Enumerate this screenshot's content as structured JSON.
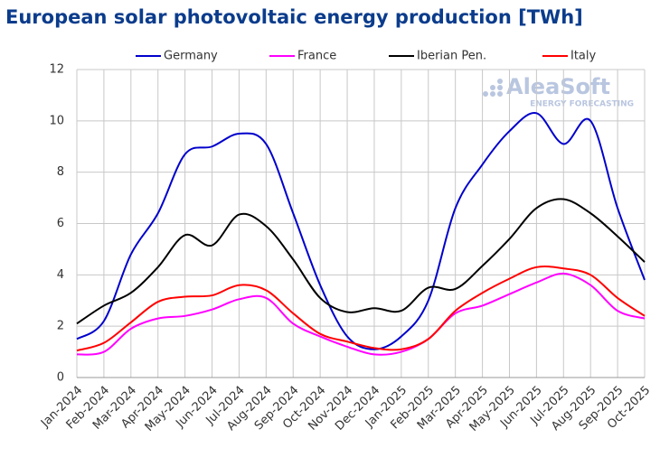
{
  "chart_data": {
    "type": "line",
    "title": "European solar photovoltaic energy production [TWh]",
    "logo": {
      "name": "AleaSoft",
      "tagline": "ENERGY FORECASTING"
    },
    "categories": [
      "Jan-2024",
      "Feb-2024",
      "Mar-2024",
      "Apr-2024",
      "May-2024",
      "Jun-2024",
      "Jul-2024",
      "Aug-2024",
      "Sep-2024",
      "Oct-2024",
      "Nov-2024",
      "Dec-2024",
      "Jan-2025",
      "Feb-2025",
      "Mar-2025",
      "Apr-2025",
      "May-2025",
      "Jun-2025",
      "Jul-2025",
      "Aug-2025",
      "Sep-2025",
      "Oct-2025"
    ],
    "series": [
      {
        "name": "Germany",
        "color": "#0000cc",
        "values": [
          1.5,
          2.2,
          4.8,
          6.4,
          8.7,
          9.0,
          9.5,
          9.1,
          6.4,
          3.6,
          1.6,
          1.1,
          1.6,
          3.0,
          6.6,
          8.3,
          9.6,
          10.3,
          9.1,
          10.0,
          6.6,
          3.8
        ]
      },
      {
        "name": "France",
        "color": "#ff00ff",
        "values": [
          0.9,
          1.0,
          1.9,
          2.3,
          2.4,
          2.65,
          3.05,
          3.1,
          2.1,
          1.6,
          1.2,
          0.9,
          1.0,
          1.5,
          2.5,
          2.8,
          3.25,
          3.7,
          4.05,
          3.6,
          2.6,
          2.3
        ]
      },
      {
        "name": "Iberian Pen.",
        "color": "#000000",
        "values": [
          2.1,
          2.8,
          3.3,
          4.3,
          5.55,
          5.15,
          6.35,
          5.9,
          4.6,
          3.1,
          2.55,
          2.7,
          2.6,
          3.5,
          3.45,
          4.35,
          5.4,
          6.6,
          6.95,
          6.4,
          5.5,
          4.5
        ]
      },
      {
        "name": "Italy",
        "color": "#ff0000",
        "values": [
          1.05,
          1.35,
          2.15,
          2.95,
          3.15,
          3.2,
          3.6,
          3.4,
          2.5,
          1.7,
          1.4,
          1.15,
          1.1,
          1.5,
          2.6,
          3.3,
          3.85,
          4.3,
          4.25,
          4.0,
          3.1,
          2.4
        ]
      }
    ],
    "ylim": [
      0,
      12
    ],
    "yticks": [
      0,
      2,
      4,
      6,
      8,
      10,
      12
    ],
    "grid": true,
    "legend": "top"
  }
}
